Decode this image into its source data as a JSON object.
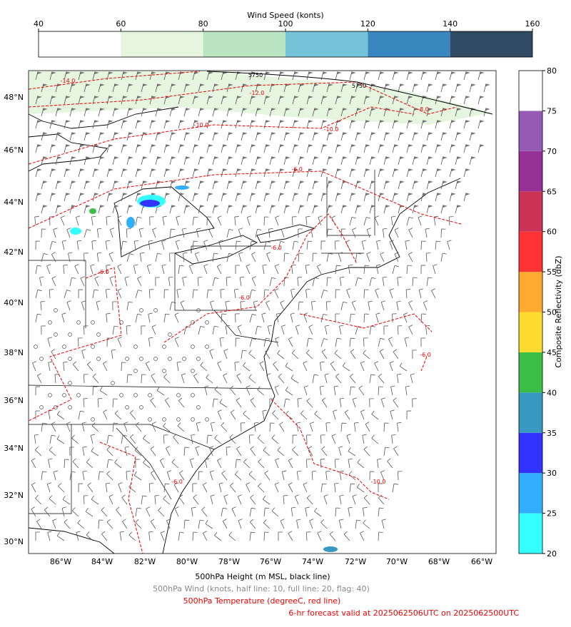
{
  "wind_colorbar": {
    "title": "Wind Speed (konts)",
    "levels": [
      40,
      60,
      80,
      100,
      120,
      140,
      160
    ],
    "colors": [
      "#ffffff",
      "#e5f5e0",
      "#b9e3c1",
      "#74c3d9",
      "#3a87c0",
      "#2f4a62"
    ]
  },
  "reflectivity_colorbar": {
    "label": "Composite Reflectivity (dbZ)",
    "levels": [
      20,
      25,
      30,
      35,
      40,
      45,
      50,
      55,
      60,
      65,
      70,
      75,
      80
    ],
    "colors": [
      "#33ffff",
      "#31aeff",
      "#3333ff",
      "#3899c0",
      "#3bbe45",
      "#fedb2f",
      "#fea930",
      "#ff3333",
      "#cb3356",
      "#953095",
      "#955ab3",
      "#ffffff"
    ]
  },
  "map": {
    "lat_labels": [
      "48°N",
      "46°N",
      "44°N",
      "42°N",
      "40°N",
      "38°N",
      "36°N",
      "34°N",
      "32°N",
      "30°N"
    ],
    "lon_labels": [
      "86°W",
      "84°W",
      "82°W",
      "80°W",
      "78°W",
      "76°W",
      "74°W",
      "72°W",
      "70°W",
      "68°W",
      "66°W"
    ],
    "height_labels": [
      "5750",
      "5750"
    ],
    "temperature_labels": [
      "-14.0",
      "-12.0",
      "-10.0",
      "-10.0",
      "-8.0",
      "-6.0",
      "-6.0",
      "-6.0",
      "-6.0",
      "-6.0",
      "-6.0",
      "-10.0"
    ]
  },
  "captions": [
    "500hPa Height (m MSL, black line)",
    "500hPa Wind (knots, half line: 10, full line: 20, flag: 40)",
    "500hPa Temperature (degreeC, red line)",
    "6-hr forecast valid at 2025062506UTC on 2025062500UTC"
  ]
}
